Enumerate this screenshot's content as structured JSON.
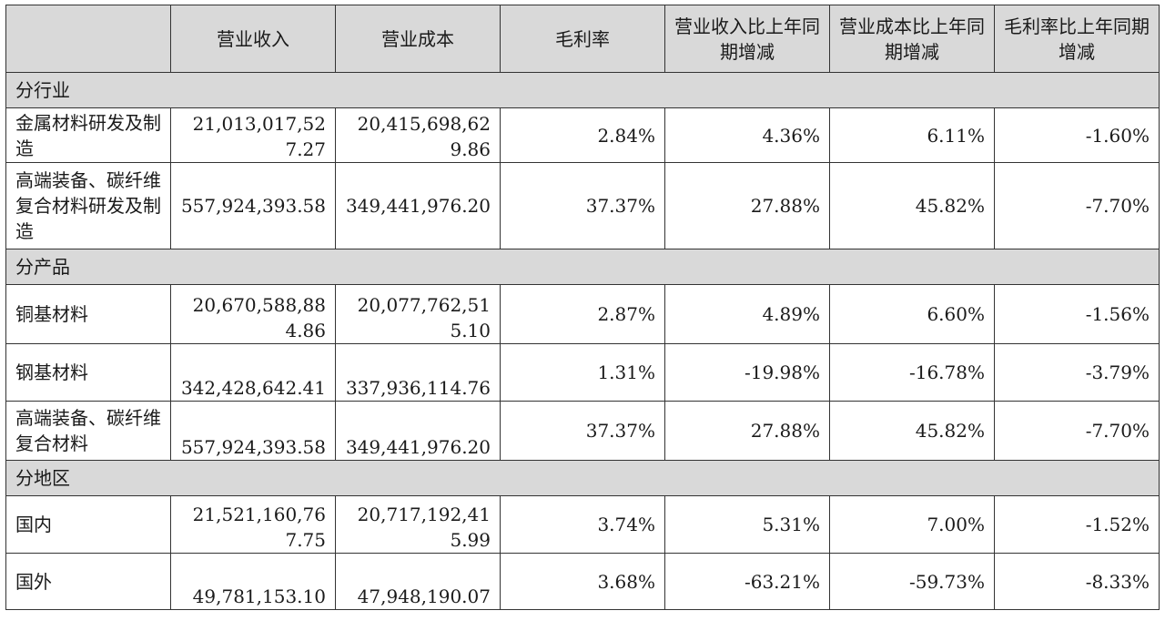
{
  "headers": [
    "",
    "营业收入",
    "营业成本",
    "毛利率",
    "营业收入比上年同期增减",
    "营业成本比上年同期增减",
    "毛利率比上年同期增减"
  ],
  "sections": [
    {
      "title": "分行业",
      "rows": [
        [
          "金属材料研发及制造",
          "21,013,017,527.27",
          "20,415,698,629.86",
          "2.84%",
          "4.36%",
          "6.11%",
          "-1.60%"
        ],
        [
          "高端装备、碳纤维复合材料研发及制造",
          "557,924,393.58",
          "349,441,976.20",
          "37.37%",
          "27.88%",
          "45.82%",
          "-7.70%"
        ]
      ]
    },
    {
      "title": "分产品",
      "rows": [
        [
          "铜基材料",
          "20,670,588,884.86",
          "20,077,762,515.10",
          "2.87%",
          "4.89%",
          "6.60%",
          "-1.56%"
        ],
        [
          "钢基材料",
          "342,428,642.41",
          "337,936,114.76",
          "1.31%",
          "-19.98%",
          "-16.78%",
          "-3.79%"
        ],
        [
          "高端装备、碳纤维复合材料",
          "557,924,393.58",
          "349,441,976.20",
          "37.37%",
          "27.88%",
          "45.82%",
          "-7.70%"
        ]
      ]
    },
    {
      "title": "分地区",
      "rows": [
        [
          "国内",
          "21,521,160,767.75",
          "20,717,192,415.99",
          "3.74%",
          "5.31%",
          "7.00%",
          "-1.52%"
        ],
        [
          "国外",
          "49,781,153.10",
          "47,948,190.07",
          "3.68%",
          "-63.21%",
          "-59.73%",
          "-8.33%"
        ]
      ]
    }
  ]
}
